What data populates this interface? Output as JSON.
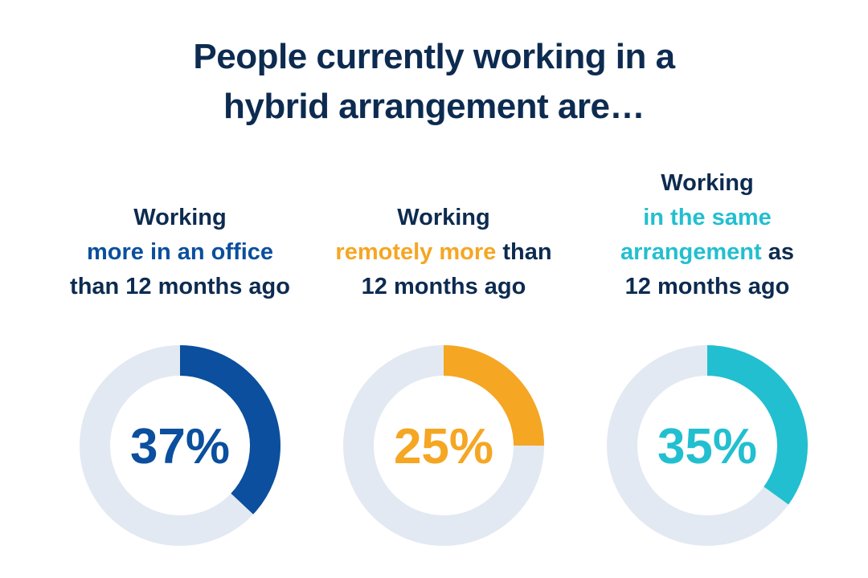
{
  "title": {
    "line1": "People currently working in a",
    "line2": "hybrid arrangement are…"
  },
  "colors": {
    "title": "#0d2b50",
    "track": "#e3e9f2",
    "office": "#0b4f9e",
    "remote": "#f5a623",
    "same": "#22bfd0"
  },
  "chart_data": {
    "type": "pie",
    "title": "People currently working in a hybrid arrangement are…",
    "series": [
      {
        "name": "Working more in an office than 12 months ago",
        "value": 37,
        "display": "37%",
        "color": "#0b4f9e",
        "label_lines": [
          [
            {
              "text": "Working",
              "accent": false
            }
          ],
          [
            {
              "text": "more in an office",
              "accent": true
            }
          ],
          [
            {
              "text": "than 12 months ago",
              "accent": false
            }
          ]
        ]
      },
      {
        "name": "Working remotely more than 12 months ago",
        "value": 25,
        "display": "25%",
        "color": "#f5a623",
        "label_lines": [
          [
            {
              "text": "Working",
              "accent": false
            }
          ],
          [
            {
              "text": "remotely more",
              "accent": true
            },
            {
              "text": " than",
              "accent": false
            }
          ],
          [
            {
              "text": "12 months ago",
              "accent": false
            }
          ]
        ]
      },
      {
        "name": "Working in the same arrangement as 12 months ago",
        "value": 35,
        "display": "35%",
        "color": "#22bfd0",
        "label_lines": [
          [
            {
              "text": "Working",
              "accent": false
            }
          ],
          [
            {
              "text": "in the same",
              "accent": true
            }
          ],
          [
            {
              "text": "arrangement",
              "accent": true
            },
            {
              "text": " as",
              "accent": false
            }
          ],
          [
            {
              "text": "12 months ago",
              "accent": false
            }
          ]
        ]
      }
    ]
  }
}
